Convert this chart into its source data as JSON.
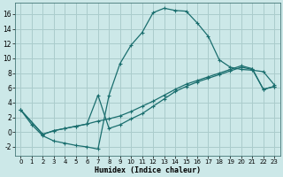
{
  "xlabel": "Humidex (Indice chaleur)",
  "xlim": [
    -0.5,
    23.5
  ],
  "ylim": [
    -3.2,
    17.5
  ],
  "xticks": [
    0,
    1,
    2,
    3,
    4,
    5,
    6,
    7,
    8,
    9,
    10,
    11,
    12,
    13,
    14,
    15,
    16,
    17,
    18,
    19,
    20,
    21,
    22,
    23
  ],
  "yticks": [
    -2,
    0,
    2,
    4,
    6,
    8,
    10,
    12,
    14,
    16
  ],
  "bg_color": "#cce8e8",
  "grid_color": "#aacccc",
  "line_color": "#1a6e6e",
  "line1": {
    "x": [
      0,
      1,
      2,
      3,
      4,
      5,
      6,
      7,
      8,
      9,
      10,
      11,
      12,
      13,
      14,
      15,
      16,
      17,
      18,
      19,
      20,
      21,
      22,
      23
    ],
    "y": [
      3.0,
      1.0,
      -0.5,
      -1.2,
      -1.5,
      -1.8,
      -2.0,
      -2.3,
      5.0,
      9.3,
      11.8,
      13.5,
      16.2,
      16.8,
      16.5,
      16.4,
      14.8,
      13.0,
      9.8,
      8.8,
      8.5,
      8.4,
      8.2,
      6.4
    ]
  },
  "line2": {
    "x": [
      0,
      2,
      3,
      4,
      5,
      6,
      7,
      8,
      9,
      10,
      11,
      12,
      13,
      14,
      15,
      16,
      17,
      18,
      19,
      20,
      21,
      22,
      23
    ],
    "y": [
      3.0,
      -0.3,
      0.2,
      0.5,
      0.8,
      1.1,
      5.0,
      0.5,
      1.0,
      1.8,
      2.5,
      3.5,
      4.5,
      5.5,
      6.2,
      6.8,
      7.3,
      7.8,
      8.3,
      8.8,
      8.5,
      5.8,
      6.2
    ]
  },
  "line3": {
    "x": [
      0,
      2,
      3,
      4,
      5,
      6,
      7,
      8,
      9,
      10,
      11,
      12,
      13,
      14,
      15,
      16,
      17,
      18,
      19,
      20,
      21,
      22,
      23
    ],
    "y": [
      3.0,
      -0.3,
      0.2,
      0.5,
      0.8,
      1.1,
      1.5,
      1.8,
      2.2,
      2.8,
      3.5,
      4.2,
      5.0,
      5.8,
      6.5,
      7.0,
      7.5,
      8.0,
      8.5,
      9.0,
      8.6,
      5.8,
      6.2
    ]
  }
}
